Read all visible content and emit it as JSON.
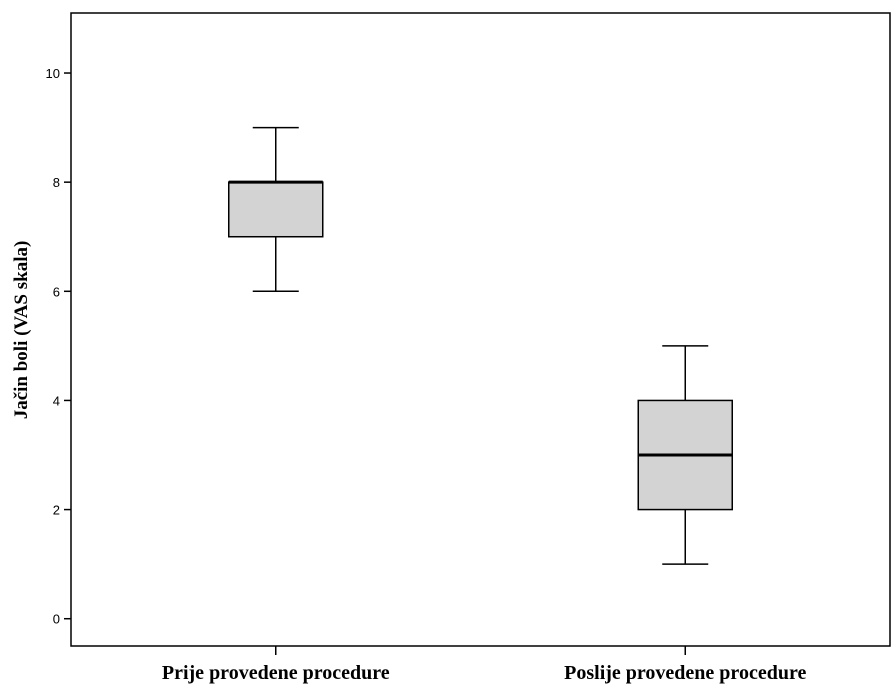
{
  "chart_data": {
    "type": "boxplot",
    "title": "",
    "xlabel": "",
    "ylabel": "Jačin boli (VAS skala)",
    "ylim": [
      -0.5,
      11.1
    ],
    "yticks": [
      0,
      2,
      4,
      6,
      8,
      10
    ],
    "grid": false,
    "categories": [
      "Prije provedene procedure",
      "Poslije provedene procedure"
    ],
    "boxes": [
      {
        "category": "Prije provedene procedure",
        "min": 6,
        "q1": 7,
        "median": 8,
        "q3": 8,
        "max": 9
      },
      {
        "category": "Poslije provedene procedure",
        "min": 1,
        "q1": 2,
        "median": 3,
        "q3": 4,
        "max": 5
      }
    ],
    "colors": {
      "box_fill": "#d3d3d3",
      "stroke": "#000000"
    }
  }
}
